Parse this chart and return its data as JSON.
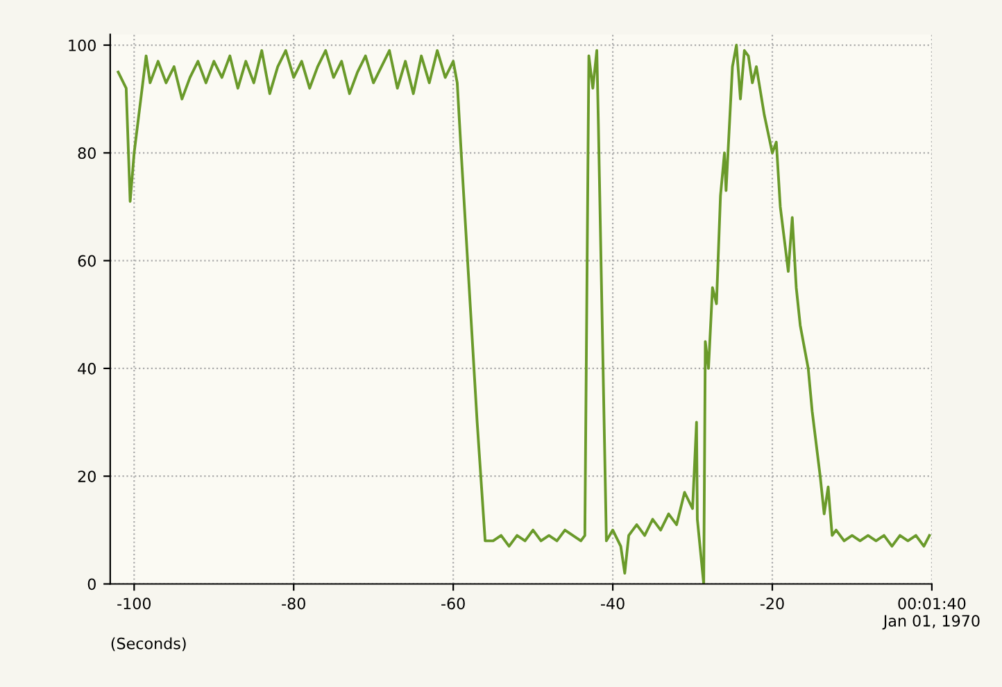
{
  "chart_data": {
    "type": "line",
    "xlabel": "(Seconds)",
    "xlim": [
      -103,
      0
    ],
    "xticks": [
      -100,
      -80,
      -60,
      -40,
      -20,
      {
        "value": 0,
        "label": "00:01:40\nJan 01, 1970"
      }
    ],
    "ylim": [
      0,
      102
    ],
    "yticks": [
      0,
      20,
      40,
      60,
      80,
      100
    ],
    "grid": true,
    "marker": "none",
    "line_style": "solid",
    "series": [
      {
        "color": "#6a9a2a",
        "x": [
          -102,
          -101,
          -100.5,
          -100,
          -99,
          -98.5,
          -98,
          -97,
          -96,
          -95,
          -94,
          -93,
          -92,
          -91,
          -90,
          -89,
          -88,
          -87,
          -86,
          -85,
          -84,
          -83,
          -82,
          -81,
          -80,
          -79,
          -78,
          -77,
          -76,
          -75,
          -74,
          -73,
          -72,
          -71,
          -70,
          -69,
          -68,
          -67,
          -66,
          -65,
          -64,
          -63,
          -62,
          -61,
          -60,
          -59.5,
          -59,
          -57,
          -56,
          -55,
          -54,
          -53,
          -52,
          -51,
          -50,
          -49,
          -48,
          -47,
          -46,
          -45,
          -44,
          -43.5,
          -43,
          -42.5,
          -42,
          -41.8,
          -40.8,
          -40,
          -39,
          -38.5,
          -38,
          -37,
          -36,
          -35,
          -34,
          -33,
          -32,
          -31,
          -30,
          -29.5,
          -29.4,
          -28.6,
          -28.4,
          -28,
          -27.5,
          -27,
          -26.5,
          -26,
          -25.8,
          -25,
          -24.5,
          -24,
          -23.5,
          -23,
          -22.5,
          -22,
          -21,
          -20,
          -19.5,
          -19,
          -18.5,
          -18,
          -17.5,
          -17,
          -16.5,
          -16,
          -15.5,
          -15,
          -14,
          -13.5,
          -13,
          -12.5,
          -12,
          -11,
          -10,
          -9,
          -8,
          -7,
          -6,
          -5,
          -4,
          -3,
          -2,
          -1,
          -0.3
        ],
        "values": [
          95,
          92,
          71,
          80,
          92,
          98,
          93,
          97,
          93,
          96,
          90,
          94,
          97,
          93,
          97,
          94,
          98,
          92,
          97,
          93,
          99,
          91,
          96,
          99,
          94,
          97,
          92,
          96,
          99,
          94,
          97,
          91,
          95,
          98,
          93,
          96,
          99,
          92,
          97,
          91,
          98,
          93,
          99,
          94,
          97,
          93,
          80,
          30,
          8,
          8,
          9,
          7,
          9,
          8,
          10,
          8,
          9,
          8,
          10,
          9,
          8,
          9,
          98,
          92,
          99,
          85,
          8,
          10,
          7,
          2,
          9,
          11,
          9,
          12,
          10,
          13,
          11,
          17,
          14,
          30,
          12,
          0,
          45,
          40,
          55,
          52,
          72,
          80,
          73,
          96,
          100,
          90,
          99,
          98,
          93,
          96,
          87,
          80,
          82,
          70,
          64,
          58,
          68,
          55,
          48,
          44,
          40,
          32,
          20,
          13,
          18,
          9,
          10,
          8,
          9,
          8,
          9,
          8,
          9,
          7,
          9,
          8,
          9,
          7,
          9
        ]
      }
    ]
  }
}
